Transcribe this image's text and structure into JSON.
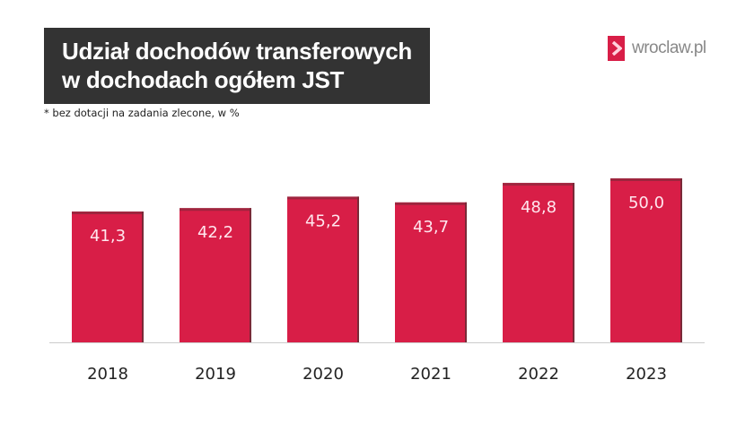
{
  "header": {
    "title_line1": "Udział dochodów transferowych",
    "title_line2": "w dochodach ogółem JST",
    "subtitle": "* bez dotacji na zadania zlecone, w %"
  },
  "logo": {
    "text": "wroclaw.pl",
    "icon": "chevron-right-icon"
  },
  "colors": {
    "bar": "#d81e47",
    "bar_edge": "#7a2a38",
    "label": "#ffe6ee",
    "axis": "#cccccc"
  },
  "chart_data": {
    "type": "bar",
    "categories": [
      "2018",
      "2019",
      "2020",
      "2021",
      "2022",
      "2023"
    ],
    "values": [
      41.3,
      42.2,
      45.2,
      43.7,
      48.8,
      50.0
    ],
    "labels": [
      "41,3",
      "42,2",
      "45,2",
      "43,7",
      "48,8",
      "50,0"
    ],
    "title": "Udział dochodów transferowych w dochodach ogółem JST",
    "xlabel": "",
    "ylabel": "",
    "ylim": [
      7,
      50
    ],
    "grid": false,
    "legend": "none"
  }
}
